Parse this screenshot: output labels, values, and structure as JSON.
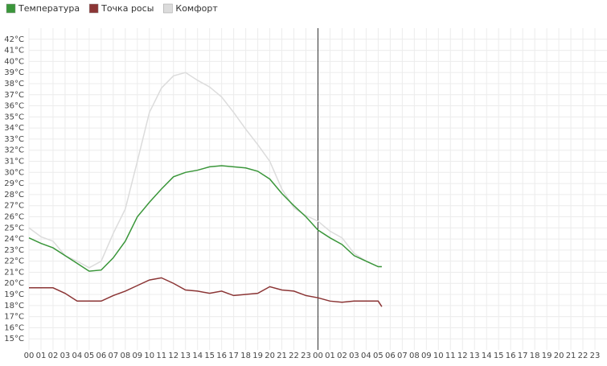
{
  "chart_data": {
    "type": "line",
    "x": [
      0,
      1,
      2,
      3,
      4,
      5,
      6,
      7,
      8,
      9,
      10,
      11,
      12,
      13,
      14,
      15,
      16,
      17,
      18,
      19,
      20,
      21,
      22,
      23,
      24,
      25,
      26,
      27,
      28,
      29,
      29.3
    ],
    "series": [
      {
        "name": "Температура",
        "color": "#3a963a",
        "values": [
          24.1,
          23.6,
          23.2,
          22.5,
          21.8,
          21.1,
          21.2,
          22.3,
          23.8,
          26.0,
          27.3,
          28.5,
          29.6,
          30.0,
          30.2,
          30.5,
          30.6,
          30.5,
          30.4,
          30.1,
          29.4,
          28.1,
          27.0,
          26.0,
          24.8,
          24.1,
          23.5,
          22.5,
          22.0,
          21.5,
          21.5
        ]
      },
      {
        "name": "Точка росы",
        "color": "#8b3535",
        "values": [
          19.6,
          19.6,
          19.6,
          19.1,
          18.4,
          18.4,
          18.4,
          18.9,
          19.3,
          19.8,
          20.3,
          20.5,
          20.0,
          19.4,
          19.3,
          19.1,
          19.3,
          18.9,
          19.0,
          19.1,
          19.7,
          19.4,
          19.3,
          18.9,
          18.7,
          18.4,
          18.3,
          18.4,
          18.4,
          18.4,
          17.9
        ]
      },
      {
        "name": "Комфорт",
        "color": "#dcdcdc",
        "values": [
          25.0,
          24.2,
          23.8,
          22.5,
          22.0,
          21.4,
          22.0,
          24.5,
          26.7,
          31.0,
          35.4,
          37.6,
          38.7,
          39.0,
          38.3,
          37.7,
          36.8,
          35.4,
          33.9,
          32.5,
          31.0,
          28.5,
          26.8,
          26.1,
          25.6,
          24.7,
          24.1,
          22.7,
          22.0,
          21.5,
          21.5
        ]
      }
    ],
    "xlim": [
      0,
      48
    ],
    "xticks": [
      {
        "value": 0,
        "label": "00"
      },
      {
        "value": 1,
        "label": "01"
      },
      {
        "value": 2,
        "label": "02"
      },
      {
        "value": 3,
        "label": "03"
      },
      {
        "value": 4,
        "label": "04"
      },
      {
        "value": 5,
        "label": "05"
      },
      {
        "value": 6,
        "label": "06"
      },
      {
        "value": 7,
        "label": "07"
      },
      {
        "value": 8,
        "label": "08"
      },
      {
        "value": 9,
        "label": "09"
      },
      10,
      11,
      12,
      13,
      14,
      15,
      16,
      17,
      18,
      19,
      20,
      21,
      22,
      23,
      {
        "value": 24,
        "label": "00"
      },
      {
        "value": 25,
        "label": "01"
      },
      {
        "value": 26,
        "label": "02"
      },
      {
        "value": 27,
        "label": "03"
      },
      {
        "value": 28,
        "label": "04"
      },
      {
        "value": 29,
        "label": "05"
      },
      {
        "value": 30,
        "label": "06"
      },
      {
        "value": 31,
        "label": "07"
      },
      {
        "value": 32,
        "label": "08"
      },
      {
        "value": 33,
        "label": "09"
      },
      {
        "value": 34,
        "label": "10"
      },
      {
        "value": 35,
        "label": "11"
      },
      {
        "value": 36,
        "label": "12"
      },
      {
        "value": 37,
        "label": "13"
      },
      {
        "value": 38,
        "label": "14"
      },
      {
        "value": 39,
        "label": "15"
      },
      {
        "value": 40,
        "label": "16"
      },
      {
        "value": 41,
        "label": "17"
      },
      {
        "value": 42,
        "label": "18"
      },
      {
        "value": 43,
        "label": "19"
      },
      {
        "value": 44,
        "label": "20"
      },
      {
        "value": 45,
        "label": "21"
      },
      {
        "value": 46,
        "label": "22"
      },
      {
        "value": 47,
        "label": "23"
      }
    ],
    "ylim": [
      14,
      43
    ],
    "yticks": [
      {
        "value": 15,
        "label": "15°C"
      },
      {
        "value": 16,
        "label": "16°C"
      },
      {
        "value": 17,
        "label": "17°C"
      },
      {
        "value": 18,
        "label": "18°C"
      },
      {
        "value": 19,
        "label": "19°C"
      },
      {
        "value": 20,
        "label": "20°C"
      },
      {
        "value": 21,
        "label": "21°C"
      },
      {
        "value": 22,
        "label": "22°C"
      },
      {
        "value": 23,
        "label": "23°C"
      },
      {
        "value": 24,
        "label": "24°C"
      },
      {
        "value": 25,
        "label": "25°C"
      },
      {
        "value": 26,
        "label": "26°C"
      },
      {
        "value": 27,
        "label": "27°C"
      },
      {
        "value": 28,
        "label": "28°C"
      },
      {
        "value": 29,
        "label": "29°C"
      },
      {
        "value": 30,
        "label": "30°C"
      },
      {
        "value": 31,
        "label": "31°C"
      },
      {
        "value": 32,
        "label": "32°C"
      },
      {
        "value": 33,
        "label": "33°C"
      },
      {
        "value": 34,
        "label": "34°C"
      },
      {
        "value": 35,
        "label": "35°C"
      },
      {
        "value": 36,
        "label": "36°C"
      },
      {
        "value": 37,
        "label": "37°C"
      },
      {
        "value": 38,
        "label": "38°C"
      },
      {
        "value": 39,
        "label": "39°C"
      },
      {
        "value": 40,
        "label": "40°C"
      },
      {
        "value": 41,
        "label": "41°C"
      },
      {
        "value": 42,
        "label": "42°C"
      }
    ],
    "grid": true,
    "legend": "top"
  }
}
